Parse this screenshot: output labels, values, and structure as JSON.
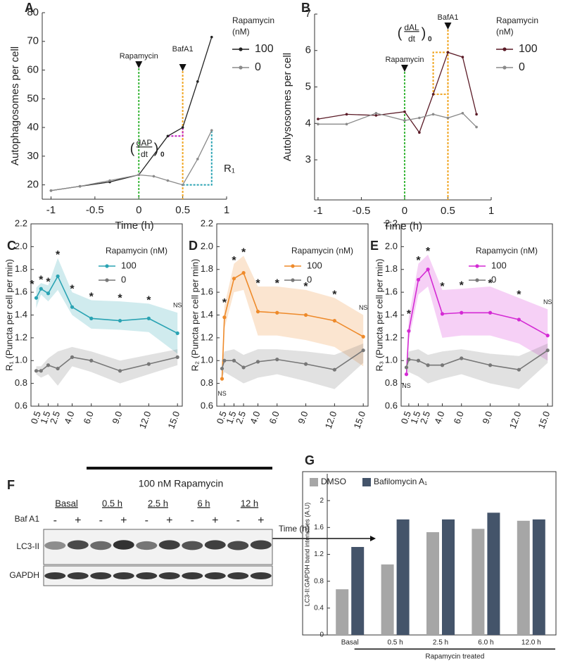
{
  "chart_data": [
    {
      "panel": "A",
      "type": "line",
      "xlabel": "Time (h)",
      "ylabel": "Autophagosomes per cell",
      "xlim": [
        -1.1,
        1
      ],
      "xticks": [
        -1,
        -0.5,
        0,
        0.5,
        1
      ],
      "ylim": [
        15,
        80
      ],
      "yticks": [
        20,
        30,
        40,
        50,
        60,
        70,
        80
      ],
      "legend_title": [
        "Rapamycin",
        "(nM)"
      ],
      "series": [
        {
          "name": "100",
          "color": "#222222",
          "x": [
            -1,
            -0.67,
            -0.33,
            0,
            0.33,
            0.5,
            0.67,
            0.83
          ],
          "values": [
            18,
            19.5,
            21,
            23.5,
            37,
            40,
            56,
            71.5
          ]
        },
        {
          "name": "0",
          "color": "#8a8a8a",
          "x": [
            -1,
            -0.67,
            -0.33,
            0,
            0.17,
            0.33,
            0.5,
            0.67,
            0.83
          ],
          "values": [
            18,
            19.5,
            21.5,
            23.5,
            23,
            21.5,
            20,
            29,
            39
          ]
        }
      ],
      "markers": [
        {
          "label": "Rapamycin",
          "x": 0,
          "color": "#3cb83c"
        },
        {
          "label": "BafA1",
          "x": 0.5,
          "color": "#f0a623"
        }
      ],
      "rate_label": {
        "open": "(",
        "numerator": "dAP",
        "denominator": "dt",
        "close": ")",
        "subscript": "0"
      },
      "slope_label": "R₁"
    },
    {
      "panel": "B",
      "type": "line",
      "xlabel": "Time (h)",
      "ylabel": "Autolysosomes per cell",
      "xlim": [
        -1.04,
        1
      ],
      "xticks": [
        -1,
        -0.5,
        0,
        0.5,
        1
      ],
      "ylim": [
        1.9,
        7
      ],
      "yticks": [
        3,
        4,
        5,
        6,
        7
      ],
      "legend_title": [
        "Rapamycin",
        "(nM)"
      ],
      "series": [
        {
          "name": "100",
          "color": "#5a1a26",
          "x": [
            -1,
            -0.67,
            -0.33,
            0,
            0.17,
            0.33,
            0.5,
            0.67,
            0.83
          ],
          "values": [
            4.12,
            4.25,
            4.22,
            4.32,
            3.75,
            4.8,
            5.95,
            5.82,
            4.25
          ]
        },
        {
          "name": "0",
          "color": "#8a8a8a",
          "x": [
            -1,
            -0.67,
            -0.33,
            0,
            0.17,
            0.33,
            0.5,
            0.67,
            0.83
          ],
          "values": [
            3.98,
            3.98,
            4.28,
            4.08,
            4.15,
            4.25,
            4.15,
            4.28,
            3.9
          ]
        }
      ],
      "markers": [
        {
          "label": "Rapamycin",
          "x": 0,
          "color": "#3cb83c"
        },
        {
          "label": "BafA1",
          "x": 0.5,
          "color": "#f0a623"
        }
      ],
      "rate_label": {
        "open": "(",
        "numerator": "dAL",
        "denominator": "dt",
        "close": ")",
        "subscript": "0"
      }
    },
    {
      "panel": "C",
      "type": "line",
      "ylabel": "R₁ (Puncta per cell per min)",
      "box": true,
      "xlim": [
        -0.3,
        15.5
      ],
      "xticks": [
        0.5,
        1.5,
        2.5,
        {
          "value": 4,
          "label": "4.0"
        },
        {
          "value": 6,
          "label": "6.0"
        },
        {
          "value": 9,
          "label": "9.0"
        },
        {
          "value": 12,
          "label": "12.0"
        },
        {
          "value": 15,
          "label": "15.0"
        }
      ],
      "ylim": [
        0.6,
        2.2
      ],
      "yticks": [
        0.6,
        0.8,
        {
          "value": 1,
          "label": "1.0"
        },
        1.2,
        1.4,
        1.6,
        1.8,
        {
          "value": 2,
          "label": "2.0"
        },
        2.2
      ],
      "legend_title": [
        "Rapamycin (nM)"
      ],
      "x": [
        0.25,
        0.75,
        1.5,
        2.5,
        4,
        6,
        9,
        12,
        15
      ],
      "series": [
        {
          "name": "100",
          "color": "#2aa3b3",
          "values": [
            1.55,
            1.63,
            1.59,
            1.74,
            1.47,
            1.37,
            1.35,
            1.37,
            1.24
          ],
          "lower": [
            1.46,
            1.58,
            1.52,
            1.62,
            1.4,
            1.28,
            1.27,
            1.25,
            1.06
          ],
          "upper": [
            1.64,
            1.68,
            1.66,
            1.9,
            1.6,
            1.53,
            1.52,
            1.5,
            1.42
          ],
          "point_labels": [
            "*",
            "*",
            "*",
            "*",
            "*",
            "*",
            "*",
            "*",
            "NS"
          ]
        },
        {
          "name": "0",
          "color": "#777777",
          "values": [
            0.91,
            0.91,
            0.96,
            0.93,
            1.03,
            1.0,
            0.91,
            0.97,
            1.03
          ],
          "lower": [
            0.88,
            0.85,
            0.88,
            0.78,
            0.95,
            0.9,
            0.8,
            0.88,
            0.96
          ],
          "upper": [
            0.95,
            0.95,
            1.02,
            1.08,
            1.12,
            1.08,
            1.0,
            1.05,
            1.1
          ]
        }
      ]
    },
    {
      "panel": "D",
      "type": "line",
      "ylabel": "R₂ (Puncta per cell per min)",
      "box": true,
      "xlim": [
        -0.3,
        15.5
      ],
      "xticks": [
        0.5,
        1.5,
        2.5,
        {
          "value": 4,
          "label": "4.0"
        },
        {
          "value": 6,
          "label": "6.0"
        },
        {
          "value": 9,
          "label": "9.0"
        },
        {
          "value": 12,
          "label": "12.0"
        },
        {
          "value": 15,
          "label": "15.0"
        }
      ],
      "ylim": [
        0.6,
        2.2
      ],
      "yticks": [
        0.6,
        0.8,
        {
          "value": 1,
          "label": "1.0"
        },
        1.2,
        1.4,
        1.6,
        1.8,
        {
          "value": 2,
          "label": "2.0"
        },
        2.2
      ],
      "legend_title": [
        "Rapamycin (nM)"
      ],
      "x": [
        0.25,
        0.5,
        1.5,
        2.5,
        4,
        6,
        9,
        12,
        15
      ],
      "series": [
        {
          "name": "100",
          "color": "#ee8a2a",
          "values": [
            0.84,
            1.38,
            1.72,
            1.77,
            1.43,
            1.42,
            1.4,
            1.35,
            1.21
          ],
          "lower": [
            0.78,
            1.28,
            1.6,
            1.62,
            1.22,
            1.22,
            1.18,
            1.12,
            0.95
          ],
          "upper": [
            0.9,
            1.48,
            1.85,
            1.92,
            1.65,
            1.65,
            1.62,
            1.55,
            1.4
          ],
          "point_labels": [
            "NS",
            "*",
            "*",
            "*",
            "*",
            "*",
            "*",
            "*",
            "NS"
          ]
        },
        {
          "name": "0",
          "color": "#777777",
          "values": [
            0.93,
            1.0,
            1.0,
            0.94,
            0.99,
            1.01,
            0.97,
            0.92,
            1.09
          ],
          "lower": [
            0.85,
            0.9,
            0.85,
            0.8,
            0.85,
            0.88,
            0.82,
            0.75,
            0.98
          ],
          "upper": [
            1.0,
            1.08,
            1.1,
            1.05,
            1.1,
            1.1,
            1.08,
            1.05,
            1.15
          ]
        }
      ]
    },
    {
      "panel": "E",
      "type": "line",
      "ylabel": "R₃ (Puncta per cell per min)",
      "box": true,
      "xlim": [
        -0.3,
        15.5
      ],
      "xticks": [
        0.5,
        1.5,
        2.5,
        {
          "value": 4,
          "label": "4.0"
        },
        {
          "value": 6,
          "label": "6.0"
        },
        {
          "value": 9,
          "label": "9.0"
        },
        {
          "value": 12,
          "label": "12.0"
        },
        {
          "value": 15,
          "label": "15.0"
        }
      ],
      "ylim": [
        0.6,
        2.2
      ],
      "yticks": [
        0.6,
        0.8,
        {
          "value": 1,
          "label": "1.0"
        },
        1.2,
        1.4,
        1.6,
        1.8,
        {
          "value": 2,
          "label": "2.0"
        },
        2.2
      ],
      "legend_title": [
        "Rapamycin (nM)"
      ],
      "x": [
        0.25,
        0.5,
        1.5,
        2.5,
        4,
        6,
        9,
        12,
        15
      ],
      "series": [
        {
          "name": "100",
          "color": "#d42ad4",
          "values": [
            0.88,
            1.26,
            1.71,
            1.8,
            1.41,
            1.42,
            1.42,
            1.36,
            1.22
          ],
          "lower": [
            0.85,
            1.18,
            1.58,
            1.65,
            1.2,
            1.22,
            1.22,
            1.15,
            1.0
          ],
          "upper": [
            0.92,
            1.38,
            1.85,
            1.93,
            1.62,
            1.63,
            1.65,
            1.55,
            1.45
          ],
          "point_labels": [
            "NS",
            "*",
            "*",
            "*",
            "*",
            "*",
            "*",
            "*",
            "NS"
          ]
        },
        {
          "name": "0",
          "color": "#777777",
          "values": [
            0.94,
            1.01,
            1.0,
            0.96,
            0.96,
            1.02,
            0.96,
            0.92,
            1.09
          ],
          "lower": [
            0.86,
            0.9,
            0.86,
            0.8,
            0.84,
            0.88,
            0.8,
            0.75,
            0.98
          ],
          "upper": [
            1.0,
            1.08,
            1.1,
            1.05,
            1.08,
            1.1,
            1.06,
            1.04,
            1.15
          ]
        }
      ]
    },
    {
      "panel": "G",
      "type": "bar",
      "box": true,
      "ylabel": "LC3-II:GAPDH band intensities (A.U)",
      "categories": [
        "Basal",
        "0.5 h",
        "2.5 h",
        "6.0 h",
        "12.0 h"
      ],
      "group_label": "Rapamycin treated",
      "ylim": [
        0,
        2.4
      ],
      "yticks": [
        0,
        0.4,
        0.8,
        1.2,
        1.6,
        2
      ],
      "series": [
        {
          "name": "DMSO",
          "color": "#a6a6a6",
          "values": [
            0.68,
            1.05,
            1.53,
            1.58,
            1.7
          ]
        },
        {
          "name": "Bafilomycin A₁",
          "color": "#44546a",
          "values": [
            1.31,
            1.72,
            1.72,
            1.82,
            1.72
          ]
        }
      ]
    }
  ],
  "shared_xlabel": "Time (h)",
  "blot": {
    "panel": "F",
    "treatment": "100 nM Rapamycin",
    "groups": [
      "Basal",
      "0.5 h",
      "2.5 h",
      "6 h",
      "12 h"
    ],
    "lane_label": "Baf A1",
    "lanes": [
      "-",
      "+",
      "-",
      "+",
      "-",
      "+",
      "-",
      "+",
      "-",
      "+"
    ],
    "rows": [
      "LC3-II",
      "GAPDH"
    ]
  }
}
